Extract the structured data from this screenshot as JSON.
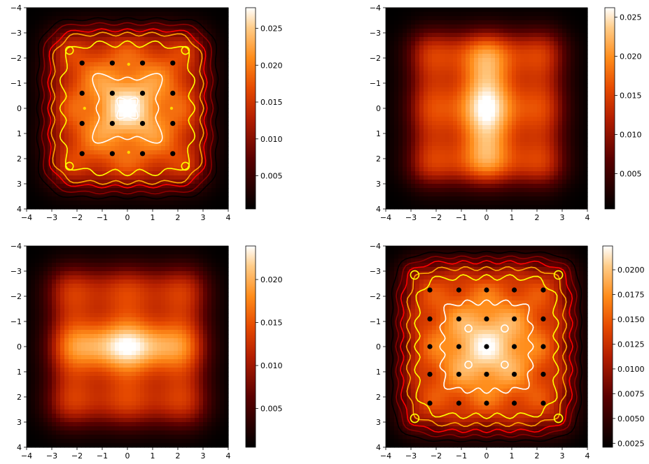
{
  "chart_data": [
    {
      "type": "heatmap",
      "title": "",
      "xlabel": "",
      "ylabel": "",
      "xlim": [
        -4,
        4
      ],
      "ylim": [
        4,
        -4
      ],
      "x_ticks": [
        -4,
        -3,
        -2,
        -1,
        0,
        1,
        2,
        3,
        4
      ],
      "y_ticks": [
        -4,
        -3,
        -2,
        -1,
        0,
        1,
        2,
        3,
        4
      ],
      "colormap": "gist_heat",
      "colorbar": {
        "range": [
          0.0005,
          0.0278
        ],
        "ticks": [
          "0.005",
          "0.010",
          "0.015",
          "0.020",
          "0.025"
        ],
        "tick_values": [
          0.005,
          0.01,
          0.015,
          0.02,
          0.025
        ]
      },
      "grid": false,
      "contour_colors": [
        "#000000",
        "#8b0000",
        "#ff0000",
        "#ffa500",
        "#ffff00",
        "#ffffff"
      ],
      "points": [
        {
          "x": -1.8,
          "y": -1.8,
          "color": "#000000"
        },
        {
          "x": -0.6,
          "y": -1.8,
          "color": "#000000"
        },
        {
          "x": 0.6,
          "y": -1.8,
          "color": "#000000"
        },
        {
          "x": 1.8,
          "y": -1.8,
          "color": "#000000"
        },
        {
          "x": -1.8,
          "y": -0.6,
          "color": "#000000"
        },
        {
          "x": -0.6,
          "y": -0.6,
          "color": "#000000"
        },
        {
          "x": 0.6,
          "y": -0.6,
          "color": "#000000"
        },
        {
          "x": 1.8,
          "y": -0.6,
          "color": "#000000"
        },
        {
          "x": -1.8,
          "y": 0.6,
          "color": "#000000"
        },
        {
          "x": -0.6,
          "y": 0.6,
          "color": "#000000"
        },
        {
          "x": 0.6,
          "y": 0.6,
          "color": "#000000"
        },
        {
          "x": 1.8,
          "y": 0.6,
          "color": "#000000"
        },
        {
          "x": -1.8,
          "y": 1.8,
          "color": "#000000"
        },
        {
          "x": -0.6,
          "y": 1.8,
          "color": "#000000"
        },
        {
          "x": 0.6,
          "y": 1.8,
          "color": "#000000"
        },
        {
          "x": 1.8,
          "y": 1.8,
          "color": "#000000"
        },
        {
          "x": 0.05,
          "y": -1.75,
          "color": "#ffd700"
        },
        {
          "x": -1.7,
          "y": 0.0,
          "color": "#ffd700"
        },
        {
          "x": 1.75,
          "y": 0.0,
          "color": "#ffd700"
        },
        {
          "x": 0.05,
          "y": 1.75,
          "color": "#ffd700"
        }
      ]
    },
    {
      "type": "heatmap",
      "title": "",
      "xlabel": "",
      "ylabel": "",
      "xlim": [
        -4,
        4
      ],
      "ylim": [
        4,
        -4
      ],
      "x_ticks": [
        -4,
        -3,
        -2,
        -1,
        0,
        1,
        2,
        3,
        4
      ],
      "y_ticks": [
        -4,
        -3,
        -2,
        -1,
        0,
        1,
        2,
        3,
        4
      ],
      "colormap": "gist_heat",
      "colorbar": {
        "range": [
          0.0005,
          0.0262
        ],
        "ticks": [
          "0.005",
          "0.010",
          "0.015",
          "0.020",
          "0.025"
        ],
        "tick_values": [
          0.005,
          0.01,
          0.015,
          0.02,
          0.025
        ]
      },
      "grid": false
    },
    {
      "type": "heatmap",
      "title": "",
      "xlabel": "",
      "ylabel": "",
      "xlim": [
        -4,
        4
      ],
      "ylim": [
        4,
        -4
      ],
      "x_ticks": [
        -4,
        -3,
        -2,
        -1,
        0,
        1,
        2,
        3,
        4
      ],
      "y_ticks": [
        -4,
        -3,
        -2,
        -1,
        0,
        1,
        2,
        3,
        4
      ],
      "colormap": "gist_heat",
      "colorbar": {
        "range": [
          0.0005,
          0.0239
        ],
        "ticks": [
          "0.005",
          "0.010",
          "0.015",
          "0.020"
        ],
        "tick_values": [
          0.005,
          0.01,
          0.015,
          0.02
        ]
      },
      "grid": false
    },
    {
      "type": "heatmap",
      "title": "",
      "xlabel": "",
      "ylabel": "",
      "xlim": [
        -4,
        4
      ],
      "ylim": [
        4,
        -4
      ],
      "x_ticks": [
        -4,
        -3,
        -2,
        -1,
        0,
        1,
        2,
        3,
        4
      ],
      "y_ticks": [
        -4,
        -3,
        -2,
        -1,
        0,
        1,
        2,
        3,
        4
      ],
      "colormap": "gist_heat",
      "colorbar": {
        "range": [
          0.0021,
          0.0224
        ],
        "ticks": [
          "0.0025",
          "0.0050",
          "0.0075",
          "0.0100",
          "0.0125",
          "0.0150",
          "0.0175",
          "0.0200"
        ],
        "tick_values": [
          0.0025,
          0.005,
          0.0075,
          0.01,
          0.0125,
          0.015,
          0.0175,
          0.02
        ]
      },
      "grid": false,
      "contour_colors": [
        "#000000",
        "#8b0000",
        "#ff0000",
        "#ffa500",
        "#ffff00",
        "#ffffff"
      ],
      "points": [
        {
          "x": -2.25,
          "y": -2.25,
          "color": "#000000"
        },
        {
          "x": -1.1,
          "y": -2.25,
          "color": "#000000"
        },
        {
          "x": 0.0,
          "y": -2.25,
          "color": "#000000"
        },
        {
          "x": 1.1,
          "y": -2.25,
          "color": "#000000"
        },
        {
          "x": 2.25,
          "y": -2.25,
          "color": "#000000"
        },
        {
          "x": -2.25,
          "y": -1.1,
          "color": "#000000"
        },
        {
          "x": -1.1,
          "y": -1.1,
          "color": "#000000"
        },
        {
          "x": 0.0,
          "y": -1.1,
          "color": "#000000"
        },
        {
          "x": 1.1,
          "y": -1.1,
          "color": "#000000"
        },
        {
          "x": 2.25,
          "y": -1.1,
          "color": "#000000"
        },
        {
          "x": -2.25,
          "y": 0.0,
          "color": "#000000"
        },
        {
          "x": -1.1,
          "y": 0.0,
          "color": "#000000"
        },
        {
          "x": 0.0,
          "y": 0.0,
          "color": "#000000"
        },
        {
          "x": 1.1,
          "y": 0.0,
          "color": "#000000"
        },
        {
          "x": 2.25,
          "y": 0.0,
          "color": "#000000"
        },
        {
          "x": -2.25,
          "y": 1.1,
          "color": "#000000"
        },
        {
          "x": -1.1,
          "y": 1.1,
          "color": "#000000"
        },
        {
          "x": 0.0,
          "y": 1.1,
          "color": "#000000"
        },
        {
          "x": 1.1,
          "y": 1.1,
          "color": "#000000"
        },
        {
          "x": 2.25,
          "y": 1.1,
          "color": "#000000"
        },
        {
          "x": -2.25,
          "y": 2.25,
          "color": "#000000"
        },
        {
          "x": -1.1,
          "y": 2.25,
          "color": "#000000"
        },
        {
          "x": 0.0,
          "y": 2.25,
          "color": "#000000"
        },
        {
          "x": 1.1,
          "y": 2.25,
          "color": "#000000"
        },
        {
          "x": 2.25,
          "y": 2.25,
          "color": "#000000"
        }
      ]
    }
  ]
}
